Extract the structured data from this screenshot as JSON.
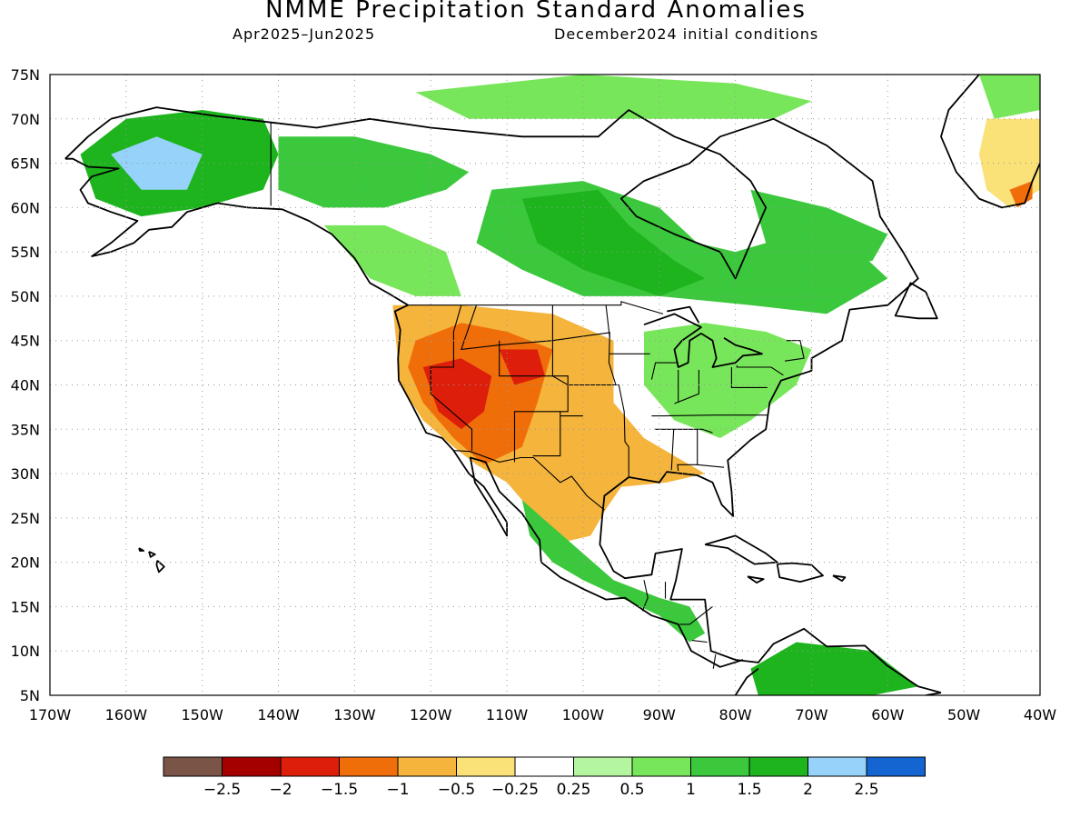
{
  "header": {
    "title": "NMME Precipitation Standard Anomalies",
    "period": "Apr2025–Jun2025",
    "initial_conditions": "December2024 initial conditions"
  },
  "map": {
    "lon_range": [
      -170,
      -40
    ],
    "lat_range": [
      5,
      75
    ],
    "grid": "dotted",
    "lon_ticks": [
      {
        "value": -170,
        "label": "170W"
      },
      {
        "value": -160,
        "label": "160W"
      },
      {
        "value": -150,
        "label": "150W"
      },
      {
        "value": -140,
        "label": "140W"
      },
      {
        "value": -130,
        "label": "130W"
      },
      {
        "value": -120,
        "label": "120W"
      },
      {
        "value": -110,
        "label": "110W"
      },
      {
        "value": -100,
        "label": "100W"
      },
      {
        "value": -90,
        "label": "90W"
      },
      {
        "value": -80,
        "label": "80W"
      },
      {
        "value": -70,
        "label": "70W"
      },
      {
        "value": -60,
        "label": "60W"
      },
      {
        "value": -50,
        "label": "50W"
      },
      {
        "value": -40,
        "label": "40W"
      }
    ],
    "lat_ticks": [
      {
        "value": 5,
        "label": "5N"
      },
      {
        "value": 10,
        "label": "10N"
      },
      {
        "value": 15,
        "label": "15N"
      },
      {
        "value": 20,
        "label": "20N"
      },
      {
        "value": 25,
        "label": "25N"
      },
      {
        "value": 30,
        "label": "30N"
      },
      {
        "value": 35,
        "label": "35N"
      },
      {
        "value": 40,
        "label": "40N"
      },
      {
        "value": 45,
        "label": "45N"
      },
      {
        "value": 50,
        "label": "50N"
      },
      {
        "value": 55,
        "label": "55N"
      },
      {
        "value": 60,
        "label": "60N"
      },
      {
        "value": 65,
        "label": "65N"
      },
      {
        "value": 70,
        "label": "70N"
      },
      {
        "value": 75,
        "label": "75N"
      }
    ],
    "anomaly_regions": [
      {
        "name": "alaska-wet",
        "level": 1.5,
        "points": [
          [
            -166,
            66
          ],
          [
            -160,
            70
          ],
          [
            -150,
            71
          ],
          [
            -142,
            70
          ],
          [
            -140,
            66
          ],
          [
            -142,
            62
          ],
          [
            -150,
            60
          ],
          [
            -158,
            59
          ],
          [
            -164,
            61
          ]
        ]
      },
      {
        "name": "alaska-core-wet",
        "level": 2,
        "points": [
          [
            -162,
            66
          ],
          [
            -156,
            68
          ],
          [
            -150,
            66
          ],
          [
            -152,
            62
          ],
          [
            -158,
            62
          ]
        ]
      },
      {
        "name": "yukon-wet",
        "level": 1,
        "points": [
          [
            -140,
            68
          ],
          [
            -130,
            68
          ],
          [
            -120,
            66
          ],
          [
            -115,
            64
          ],
          [
            -118,
            62
          ],
          [
            -126,
            60
          ],
          [
            -134,
            60
          ],
          [
            -140,
            62
          ]
        ]
      },
      {
        "name": "arctic-islands-wet",
        "level": 0.5,
        "points": [
          [
            -122,
            73
          ],
          [
            -100,
            75
          ],
          [
            -80,
            74
          ],
          [
            -70,
            72
          ],
          [
            -75,
            70
          ],
          [
            -95,
            70
          ],
          [
            -115,
            70
          ]
        ]
      },
      {
        "name": "canada-interior-wet",
        "level": 1,
        "points": [
          [
            -112,
            62
          ],
          [
            -100,
            63
          ],
          [
            -90,
            60
          ],
          [
            -85,
            56
          ],
          [
            -80,
            55
          ],
          [
            -72,
            57
          ],
          [
            -65,
            56
          ],
          [
            -60,
            52
          ],
          [
            -68,
            48
          ],
          [
            -78,
            49
          ],
          [
            -90,
            50
          ],
          [
            -100,
            50
          ],
          [
            -108,
            53
          ],
          [
            -114,
            56
          ]
        ]
      },
      {
        "name": "hudson-bay-wet",
        "level": 1.5,
        "points": [
          [
            -108,
            61
          ],
          [
            -98,
            62
          ],
          [
            -94,
            58
          ],
          [
            -88,
            54
          ],
          [
            -84,
            52
          ],
          [
            -90,
            50
          ],
          [
            -100,
            53
          ],
          [
            -106,
            56
          ]
        ]
      },
      {
        "name": "quebec-wet",
        "level": 1,
        "points": [
          [
            -78,
            62
          ],
          [
            -68,
            60
          ],
          [
            -60,
            57
          ],
          [
            -62,
            54
          ],
          [
            -70,
            53
          ],
          [
            -76,
            56
          ]
        ]
      },
      {
        "name": "bc-coast-wet",
        "level": 0.5,
        "points": [
          [
            -134,
            58
          ],
          [
            -126,
            58
          ],
          [
            -118,
            55
          ],
          [
            -116,
            50
          ],
          [
            -122,
            50
          ],
          [
            -128,
            52
          ]
        ]
      },
      {
        "name": "great-lakes-east-wet",
        "level": 0.5,
        "points": [
          [
            -92,
            46
          ],
          [
            -84,
            47
          ],
          [
            -76,
            46
          ],
          [
            -70,
            44
          ],
          [
            -72,
            40
          ],
          [
            -78,
            36
          ],
          [
            -82,
            34
          ],
          [
            -88,
            36
          ],
          [
            -92,
            40
          ]
        ]
      },
      {
        "name": "west-dry",
        "level": -1,
        "points": [
          [
            -125,
            49
          ],
          [
            -116,
            49
          ],
          [
            -104,
            48
          ],
          [
            -96,
            45
          ],
          [
            -96,
            38
          ],
          [
            -92,
            34
          ],
          [
            -88,
            32
          ],
          [
            -84,
            30
          ],
          [
            -89,
            29
          ],
          [
            -95,
            28.5
          ],
          [
            -97,
            26
          ],
          [
            -99,
            23
          ],
          [
            -104,
            22
          ],
          [
            -106,
            25
          ],
          [
            -110,
            29
          ],
          [
            -114,
            31
          ],
          [
            -117,
            33
          ],
          [
            -121,
            36
          ],
          [
            -124,
            40
          ]
        ]
      },
      {
        "name": "great-basin-very-dry",
        "level": -1.5,
        "points": [
          [
            -122,
            45
          ],
          [
            -116,
            47
          ],
          [
            -110,
            46
          ],
          [
            -104,
            44
          ],
          [
            -106,
            38
          ],
          [
            -108,
            33
          ],
          [
            -113,
            31
          ],
          [
            -117,
            34
          ],
          [
            -121,
            38
          ],
          [
            -123,
            42
          ]
        ]
      },
      {
        "name": "nevada-utah-extreme-dry",
        "level": -2,
        "points": [
          [
            -121,
            42
          ],
          [
            -116,
            43
          ],
          [
            -112,
            41
          ],
          [
            -113,
            37
          ],
          [
            -116,
            35
          ],
          [
            -119,
            37
          ]
        ]
      },
      {
        "name": "wyoming-extreme-dry",
        "level": -2,
        "points": [
          [
            -111,
            44
          ],
          [
            -106,
            44
          ],
          [
            -105,
            41
          ],
          [
            -109,
            40
          ]
        ]
      },
      {
        "name": "mexico-gulf-wet",
        "level": 1,
        "points": [
          [
            -108,
            27
          ],
          [
            -104,
            24
          ],
          [
            -100,
            21
          ],
          [
            -96,
            18
          ],
          [
            -90,
            16
          ],
          [
            -86,
            15
          ],
          [
            -84,
            12
          ],
          [
            -86,
            11
          ],
          [
            -90,
            14
          ],
          [
            -95,
            16
          ],
          [
            -100,
            18
          ],
          [
            -104,
            20
          ],
          [
            -107,
            23
          ]
        ]
      },
      {
        "name": "south-america-wet",
        "level": 1.5,
        "points": [
          [
            -78,
            8
          ],
          [
            -72,
            11
          ],
          [
            -62,
            10
          ],
          [
            -56,
            6
          ],
          [
            -62,
            5
          ],
          [
            -72,
            5
          ],
          [
            -77,
            5
          ]
        ]
      },
      {
        "name": "greenland-wet",
        "level": 0.5,
        "points": [
          [
            -48,
            75
          ],
          [
            -40,
            75
          ],
          [
            -40,
            71
          ],
          [
            -46,
            70
          ]
        ]
      },
      {
        "name": "greenland-dry",
        "level": -0.5,
        "points": [
          [
            -47,
            70
          ],
          [
            -40,
            70
          ],
          [
            -40,
            62
          ],
          [
            -44,
            60
          ],
          [
            -47,
            62
          ],
          [
            -48,
            66
          ]
        ]
      },
      {
        "name": "greenland-tip-dry",
        "level": -1.5,
        "points": [
          [
            -44,
            62
          ],
          [
            -41,
            63
          ],
          [
            -41,
            61
          ],
          [
            -43,
            60
          ]
        ]
      }
    ]
  },
  "legend": {
    "colors": [
      "#7a5547",
      "#a50000",
      "#dc1e0a",
      "#f06e0a",
      "#f5b43c",
      "#fae178",
      "#ffffff",
      "#b4f5a0",
      "#78e65a",
      "#3cc83c",
      "#1eb41e",
      "#96d2fa",
      "#1464d2"
    ],
    "labels": [
      "−2.5",
      "−2",
      "−1.5",
      "−1",
      "−0.5",
      "−0.25",
      "0.25",
      "0.5",
      "1",
      "1.5",
      "2",
      "2.5"
    ],
    "levels": [
      -3,
      -2.5,
      -2,
      -1.5,
      -1,
      -0.5,
      -0.25,
      0.25,
      0.5,
      1,
      1.5,
      2,
      2.5,
      3
    ]
  }
}
